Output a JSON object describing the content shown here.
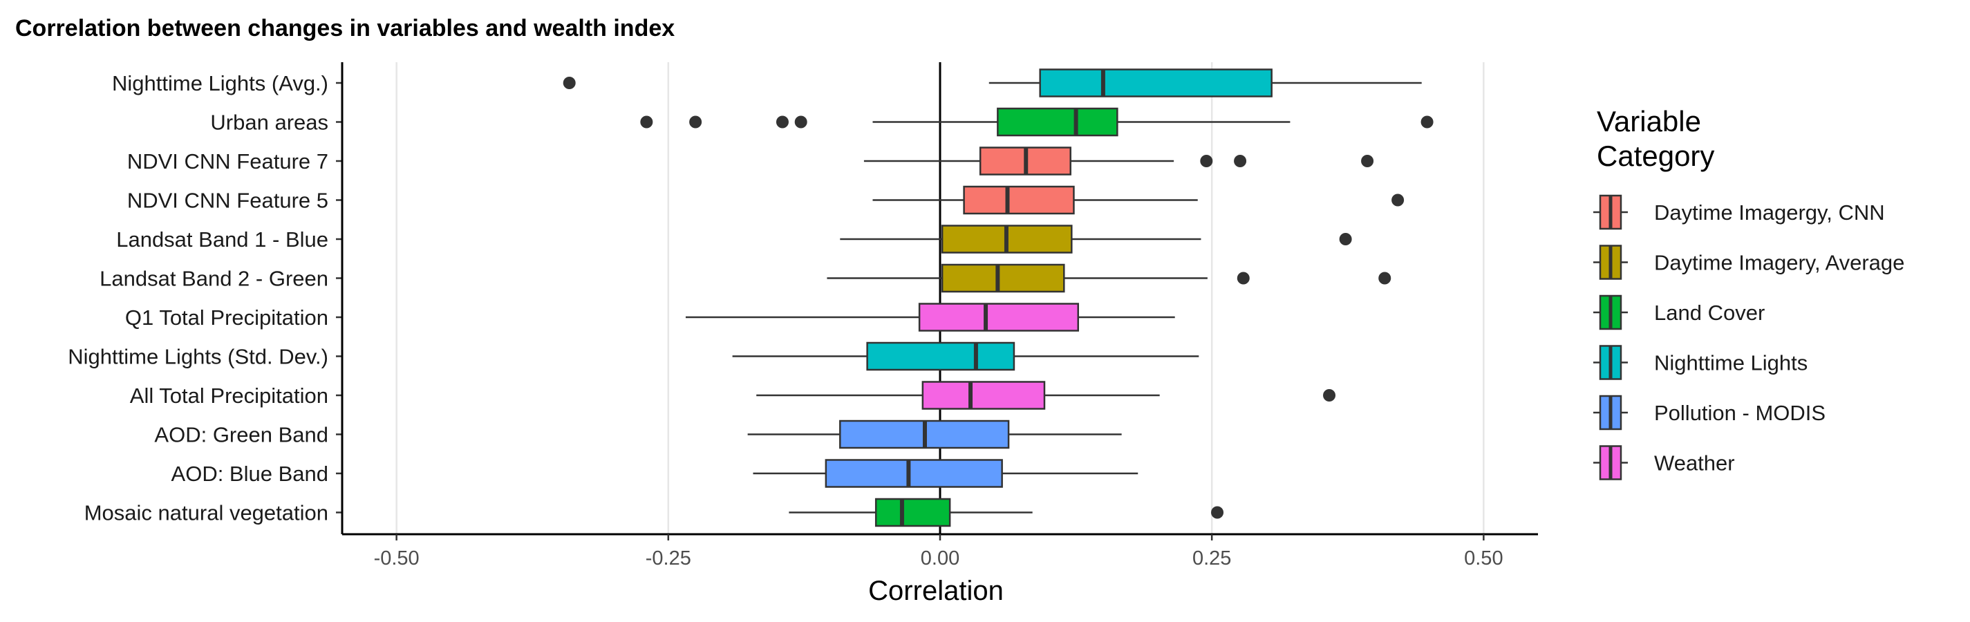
{
  "chart_data": {
    "type": "boxplot",
    "title": "Correlation between changes in variables and wealth index",
    "xlabel": "Correlation",
    "ylabel": "",
    "xlim": [
      -0.55,
      0.55
    ],
    "xticks": [
      -0.5,
      -0.25,
      0.0,
      0.25,
      0.5
    ],
    "xtick_labels": [
      "-0.50",
      "-0.25",
      "0.00",
      "0.25",
      "0.50"
    ],
    "reference_line": 0.0,
    "grid": "vertical major gridlines",
    "legend": {
      "title_lines": [
        "Variable",
        "Category"
      ],
      "placement": "right",
      "items": [
        {
          "label": "Daytime Imagergy, CNN",
          "color": "#F8766D"
        },
        {
          "label": "Daytime Imagery, Average",
          "color": "#B79F00"
        },
        {
          "label": "Land Cover",
          "color": "#00BA38"
        },
        {
          "label": "Nighttime Lights",
          "color": "#00BFC4"
        },
        {
          "label": "Pollution - MODIS",
          "color": "#619CFF"
        },
        {
          "label": "Weather",
          "color": "#F564E3"
        }
      ]
    },
    "boxes": [
      {
        "variable": "Nighttime Lights (Avg.)",
        "category": "Nighttime Lights",
        "color": "#00BFC4",
        "whisker_low": 0.045,
        "q1": 0.092,
        "median": 0.15,
        "q3": 0.305,
        "whisker_high": 0.443,
        "outliers": [
          -0.341
        ]
      },
      {
        "variable": "Urban areas",
        "category": "Land Cover",
        "color": "#00BA38",
        "whisker_low": -0.062,
        "q1": 0.053,
        "median": 0.125,
        "q3": 0.163,
        "whisker_high": 0.322,
        "outliers": [
          -0.27,
          -0.225,
          -0.145,
          -0.128,
          0.448
        ]
      },
      {
        "variable": "NDVI CNN Feature 7",
        "category": "Daytime Imagergy, CNN",
        "color": "#F8766D",
        "whisker_low": -0.07,
        "q1": 0.037,
        "median": 0.079,
        "q3": 0.12,
        "whisker_high": 0.215,
        "outliers": [
          0.245,
          0.276,
          0.393
        ]
      },
      {
        "variable": "NDVI CNN Feature 5",
        "category": "Daytime Imagergy, CNN",
        "color": "#F8766D",
        "whisker_low": -0.062,
        "q1": 0.022,
        "median": 0.062,
        "q3": 0.123,
        "whisker_high": 0.237,
        "outliers": [
          0.421
        ]
      },
      {
        "variable": "Landsat Band 1 - Blue",
        "category": "Daytime Imagery, Average",
        "color": "#B79F00",
        "whisker_low": -0.092,
        "q1": 0.002,
        "median": 0.061,
        "q3": 0.121,
        "whisker_high": 0.24,
        "outliers": [
          0.373
        ]
      },
      {
        "variable": "Landsat Band 2 - Green",
        "category": "Daytime Imagery, Average",
        "color": "#B79F00",
        "whisker_low": -0.104,
        "q1": 0.002,
        "median": 0.053,
        "q3": 0.114,
        "whisker_high": 0.246,
        "outliers": [
          0.279,
          0.409
        ]
      },
      {
        "variable": "Q1 Total Precipitation",
        "category": "Weather",
        "color": "#F564E3",
        "whisker_low": -0.234,
        "q1": -0.019,
        "median": 0.042,
        "q3": 0.127,
        "whisker_high": 0.216,
        "outliers": []
      },
      {
        "variable": "Nighttime Lights (Std. Dev.)",
        "category": "Nighttime Lights",
        "color": "#00BFC4",
        "whisker_low": -0.191,
        "q1": -0.067,
        "median": 0.033,
        "q3": 0.068,
        "whisker_high": 0.238,
        "outliers": []
      },
      {
        "variable": "All Total Precipitation",
        "category": "Weather",
        "color": "#F564E3",
        "whisker_low": -0.169,
        "q1": -0.016,
        "median": 0.028,
        "q3": 0.096,
        "whisker_high": 0.202,
        "outliers": [
          0.358
        ]
      },
      {
        "variable": "AOD: Green Band",
        "category": "Pollution - MODIS",
        "color": "#619CFF",
        "whisker_low": -0.177,
        "q1": -0.092,
        "median": -0.014,
        "q3": 0.063,
        "whisker_high": 0.167,
        "outliers": []
      },
      {
        "variable": "AOD: Blue Band",
        "category": "Pollution - MODIS",
        "color": "#619CFF",
        "whisker_low": -0.172,
        "q1": -0.105,
        "median": -0.029,
        "q3": 0.057,
        "whisker_high": 0.182,
        "outliers": []
      },
      {
        "variable": "Mosaic natural vegetation",
        "category": "Land Cover",
        "color": "#00BA38",
        "whisker_low": -0.139,
        "q1": -0.059,
        "median": -0.035,
        "q3": 0.009,
        "whisker_high": 0.085,
        "outliers": [
          0.255
        ]
      }
    ]
  }
}
